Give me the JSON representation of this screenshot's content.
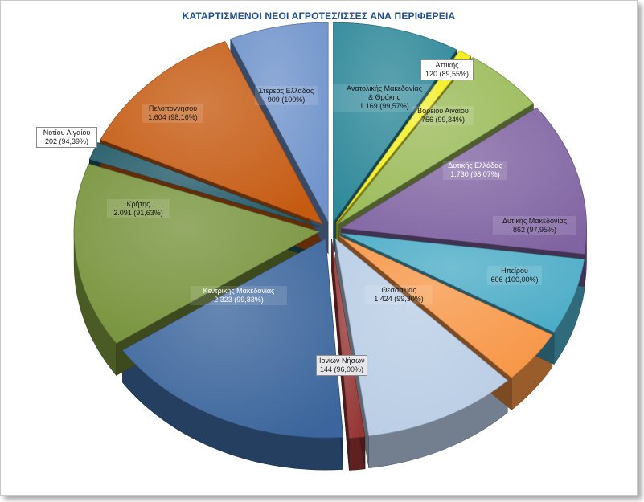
{
  "colors": {
    "title": "#1f4e8c"
  },
  "chart_data": {
    "type": "pie",
    "variant": "3d-exploded",
    "title": "ΚΑΤΑΡΤΙΣΜΕΝΟΙ ΝΕΟΙ ΑΓΡΟΤΕΣ/ΙΣΣΕΣ ΑΝΑ ΠΕΡΙΦΕΡΕΙΑ",
    "legend": "none",
    "slices": [
      {
        "name": "Ανατολικής Μακεδονίας & Θράκης",
        "value": 1169,
        "pct_label": "99,57%",
        "name_lines": [
          "Ανατολικής Μακεδονίας",
          "& Θράκης"
        ],
        "value_label": "1.169 (99,57%)",
        "color": "#2e8899"
      },
      {
        "name": "Αττικής",
        "value": 120,
        "pct_label": "89,55%",
        "name_lines": [
          "Αττικής"
        ],
        "value_label": "120 (89,55%)",
        "color": "#f2ee1e"
      },
      {
        "name": "Βορείου Αιγαίου",
        "value": 756,
        "pct_label": "99,34%",
        "name_lines": [
          "Βορείου Αιγαίου"
        ],
        "value_label": "756 (99,34%)",
        "color": "#9bbb59"
      },
      {
        "name": "Δυτικής Ελλάδας",
        "value": 1730,
        "pct_label": "98,07%",
        "name_lines": [
          "Δυτικής Ελλάδας"
        ],
        "value_label": "1.730 (98,07%)",
        "color": "#8064a2"
      },
      {
        "name": "Δυτικής Μακεδονίας",
        "value": 862,
        "pct_label": "97,95%",
        "name_lines": [
          "Δυτικής Μακεδονίας"
        ],
        "value_label": "862  (97,95%)",
        "color": "#4bacc6"
      },
      {
        "name": "Ηπείρου",
        "value": 606,
        "pct_label": "100,00%",
        "name_lines": [
          "Ηπείρου"
        ],
        "value_label": "606 (100,00%)",
        "color": "#f79646"
      },
      {
        "name": "Θεσσαλίας",
        "value": 1424,
        "pct_label": "99,30%",
        "name_lines": [
          "Θεσσαλίας"
        ],
        "value_label": "1.424  (99,30%)",
        "color": "#b9cde5"
      },
      {
        "name": "Ιονίων Νήσων",
        "value": 144,
        "pct_label": "96,00%",
        "name_lines": [
          "Ιονίων Νήσων"
        ],
        "value_label": "144 (96,00%)",
        "color": "#943634"
      },
      {
        "name": "Κεντρικής Μακεδονίας",
        "value": 2323,
        "pct_label": "99,83%",
        "name_lines": [
          "Κεντρικής Μακεδονίας"
        ],
        "value_label": "2.323  (99,83%)",
        "color": "#3b659c"
      },
      {
        "name": "Κρήτης",
        "value": 2091,
        "pct_label": "91,63%",
        "name_lines": [
          "Κρήτης"
        ],
        "value_label": "2.091 (91,63%)",
        "color": "#77933c"
      },
      {
        "name": "Νοτίου Αιγαίου",
        "value": 202,
        "pct_label": "94,39%",
        "name_lines": [
          "Νοτίου Αιγαίου"
        ],
        "value_label": "202 (94,39%)",
        "color": "#215967"
      },
      {
        "name": "Πελοποννήσου",
        "value": 1604,
        "pct_label": "98,16%",
        "name_lines": [
          "Πελοποννήσου"
        ],
        "value_label": "1.604 (98,16%)",
        "color": "#c55a11"
      },
      {
        "name": "Στερεάς Ελλάδας",
        "value": 909,
        "pct_label": "100%",
        "name_lines": [
          "Στερεάς Ελλάδας"
        ],
        "value_label": "909 (100%)",
        "color": "#6f93cb"
      }
    ]
  }
}
